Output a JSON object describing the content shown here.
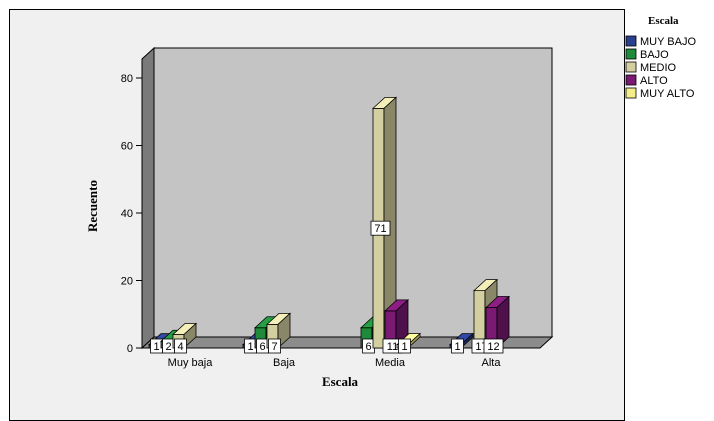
{
  "chart_data": {
    "type": "bar",
    "xlabel": "Escala",
    "ylabel": "Recuento",
    "ylim": [
      0,
      80
    ],
    "yticks": [
      "0",
      "20",
      "40",
      "60",
      "80"
    ],
    "categories": [
      "Muy baja",
      "Baja",
      "Media",
      "Alta"
    ],
    "legend_title": "Escala",
    "legend_position": "top-right",
    "series": [
      {
        "name": "MUY BAJO",
        "color": "#2b3f8f",
        "values": [
          1,
          1,
          0,
          1
        ],
        "labels": [
          "1",
          "1",
          "",
          "1"
        ]
      },
      {
        "name": "BAJO",
        "color": "#1f8a3a",
        "values": [
          2,
          6,
          6,
          0
        ],
        "labels": [
          "2",
          "6",
          "6",
          ""
        ]
      },
      {
        "name": "MEDIO",
        "color": "#d4cfa0",
        "values": [
          4,
          7,
          71,
          17
        ],
        "labels": [
          "4",
          "7",
          "71",
          "17"
        ]
      },
      {
        "name": "ALTO",
        "color": "#7a1a73",
        "values": [
          0,
          0,
          11,
          12
        ],
        "labels": [
          "",
          "",
          "11",
          "12"
        ]
      },
      {
        "name": "MUY ALTO",
        "color": "#f3ee8a",
        "values": [
          0,
          0,
          1,
          0
        ],
        "labels": [
          "",
          "",
          "1",
          ""
        ]
      }
    ],
    "grid": false
  }
}
